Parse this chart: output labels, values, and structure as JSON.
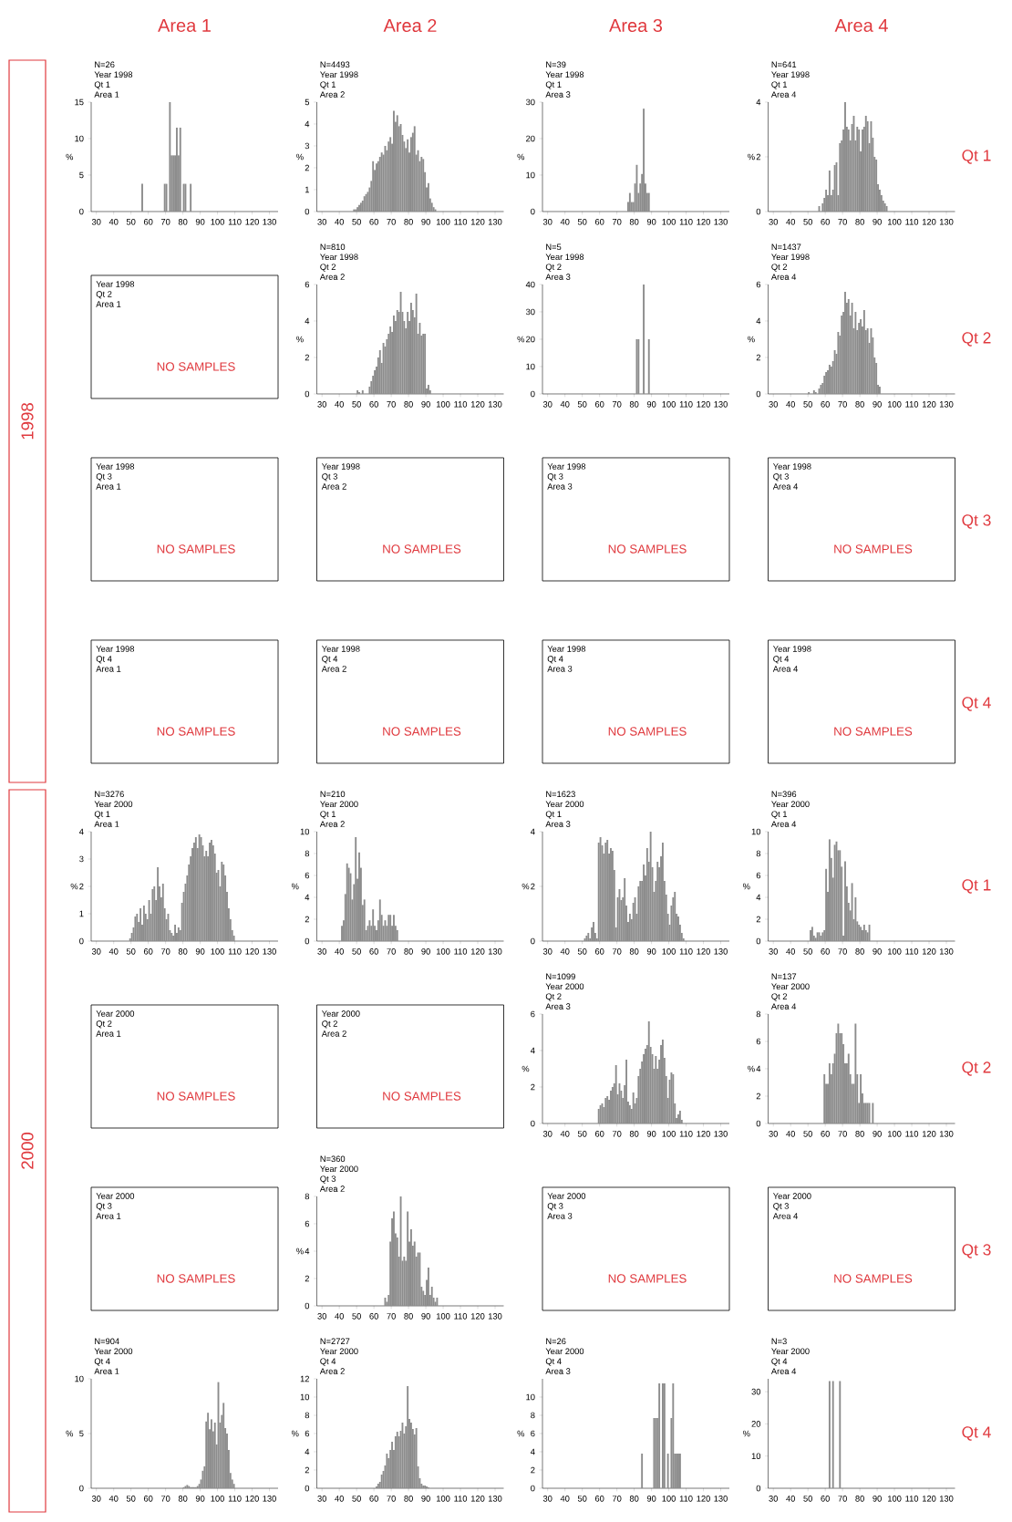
{
  "chart_data": [
    {
      "type": "other",
      "color": "#e0393e",
      "annotations": [
        "1998",
        "2000",
        "Area 1",
        "Area 2",
        "Area 3",
        "Area 4",
        "Qt 1",
        "Qt 2",
        "Qt 3",
        "Qt 4",
        "Qt 1",
        "Qt 2",
        "Qt 3",
        "Qt 4"
      ]
    },
    {
      "type": "histogram",
      "color": "#8c8c8c",
      "ylabel": "%",
      "annotations": [
        "N=26",
        "Year 1998",
        "Qt 1",
        "Area 1"
      ],
      "xlim": [
        27,
        135
      ],
      "xticks": [
        30,
        40,
        50,
        60,
        70,
        80,
        90,
        100,
        110,
        120,
        130
      ],
      "ylim": [
        0,
        15
      ],
      "yticks": [
        0,
        5,
        10,
        15
      ],
      "bins": [
        56,
        57,
        58,
        59,
        60,
        61,
        62,
        63,
        64,
        65,
        66,
        67,
        68,
        69,
        70,
        71,
        72,
        73,
        74,
        75,
        76,
        77,
        78,
        79,
        80,
        81,
        82,
        83,
        84,
        85
      ],
      "values": [
        3.8,
        0,
        0,
        0,
        0,
        0,
        0,
        0,
        0,
        0,
        0,
        0,
        0,
        3.8,
        3.8,
        0,
        15,
        7.7,
        7.7,
        7.7,
        11.5,
        7.7,
        11.5,
        0,
        3.8,
        3.8,
        0,
        0,
        3.8
      ]
    },
    {
      "type": "histogram",
      "color": "#8c8c8c",
      "ylabel": "%",
      "annotations": [
        "N=4493",
        "Year 1998",
        "Qt 1",
        "Area 2"
      ],
      "xlim": [
        27,
        135
      ],
      "xticks": [
        30,
        40,
        50,
        60,
        70,
        80,
        90,
        100,
        110,
        120,
        130
      ],
      "ylim": [
        0,
        5
      ],
      "yticks": [
        0,
        1,
        2,
        3,
        4,
        5
      ],
      "bins": [
        48,
        49,
        50,
        51,
        52,
        53,
        54,
        55,
        56,
        57,
        58,
        59,
        60,
        61,
        62,
        63,
        64,
        65,
        66,
        67,
        68,
        69,
        70,
        71,
        72,
        73,
        74,
        75,
        76,
        77,
        78,
        79,
        80,
        81,
        82,
        83,
        84,
        85,
        86,
        87,
        88,
        89,
        90,
        91,
        92,
        93,
        94,
        95,
        96
      ],
      "values": [
        0.1,
        0.1,
        0.2,
        0.3,
        0.4,
        0.5,
        0.7,
        0.8,
        0.9,
        1.1,
        1.4,
        2.3,
        1.9,
        2.2,
        2.3,
        2.5,
        2.7,
        2.6,
        3.0,
        2.8,
        3.2,
        3.4,
        3.1,
        4.6,
        4.1,
        4.4,
        3.9,
        4.0,
        3.5,
        3.2,
        2.9,
        3.3,
        2.7,
        3.4,
        3.6,
        3.9,
        2.6,
        2.8,
        2.3,
        2.5,
        2.4,
        1.8,
        1.1,
        1.3,
        0.6,
        0.4,
        0.2,
        0.1
      ]
    },
    {
      "type": "histogram",
      "color": "#8c8c8c",
      "ylabel": "%",
      "annotations": [
        "N=39",
        "Year 1998",
        "Qt 1",
        "Area 3"
      ],
      "xlim": [
        27,
        135
      ],
      "xticks": [
        30,
        40,
        50,
        60,
        70,
        80,
        90,
        100,
        110,
        120,
        130
      ],
      "ylim": [
        0,
        30
      ],
      "yticks": [
        0,
        10,
        20,
        30
      ],
      "bins": [
        76,
        77,
        78,
        79,
        80,
        81,
        82,
        83,
        84,
        85,
        86,
        87,
        88,
        89
      ],
      "values": [
        2.6,
        5.1,
        2.6,
        2.6,
        7.7,
        12.8,
        5.1,
        7.7,
        10.3,
        28.2,
        7.7,
        5.1,
        5.1
      ]
    },
    {
      "type": "histogram",
      "color": "#8c8c8c",
      "ylabel": "%",
      "annotations": [
        "N=641",
        "Year 1998",
        "Qt 1",
        "Area 4"
      ],
      "xlim": [
        27,
        135
      ],
      "xticks": [
        30,
        40,
        50,
        60,
        70,
        80,
        90,
        100,
        110,
        120,
        130
      ],
      "ylim": [
        0,
        4
      ],
      "yticks": [
        0,
        2,
        4
      ],
      "bins": [
        56,
        57,
        58,
        59,
        60,
        61,
        62,
        63,
        64,
        65,
        66,
        67,
        68,
        69,
        70,
        71,
        72,
        73,
        74,
        75,
        76,
        77,
        78,
        79,
        80,
        81,
        82,
        83,
        84,
        85,
        86,
        87,
        88,
        89,
        90,
        91,
        92,
        93,
        94,
        95,
        96
      ],
      "values": [
        0.2,
        0,
        0.3,
        0.5,
        0.8,
        0.6,
        1.5,
        0.6,
        0.8,
        1.7,
        1.8,
        0.6,
        2.5,
        2.6,
        3.0,
        4.0,
        3.1,
        3.0,
        2.6,
        3.2,
        3.5,
        2.6,
        3.1,
        3.0,
        2.2,
        3.0,
        3.1,
        3.5,
        3.3,
        2.5,
        3.3,
        2.7,
        2.0,
        1.9,
        1.0,
        0.8,
        0.6,
        0.4,
        0.3,
        0.2
      ]
    },
    {
      "type": "other",
      "color": "#e0393e",
      "annotations": [
        "Year 1998",
        "Qt 2",
        "Area 1",
        "NO SAMPLES"
      ]
    },
    {
      "type": "histogram",
      "color": "#8c8c8c",
      "ylabel": "%",
      "annotations": [
        "N=810",
        "Year 1998",
        "Qt 2",
        "Area 2"
      ],
      "xlim": [
        27,
        135
      ],
      "xticks": [
        30,
        40,
        50,
        60,
        70,
        80,
        90,
        100,
        110,
        120,
        130
      ],
      "ylim": [
        0,
        6
      ],
      "yticks": [
        0,
        2,
        4,
        6
      ],
      "bins": [
        50,
        51,
        52,
        53,
        54,
        55,
        56,
        57,
        58,
        59,
        60,
        61,
        62,
        63,
        64,
        65,
        66,
        67,
        68,
        69,
        70,
        71,
        72,
        73,
        74,
        75,
        76,
        77,
        78,
        79,
        80,
        81,
        82,
        83,
        84,
        85,
        86,
        87,
        88,
        89,
        90,
        91,
        92,
        93
      ],
      "values": [
        0.2,
        0.1,
        0,
        0.2,
        0,
        0,
        0,
        0.4,
        0.7,
        1.0,
        1.3,
        1.5,
        2.0,
        2.4,
        1.7,
        2.8,
        2.6,
        3.0,
        3.3,
        3.7,
        3.4,
        4.3,
        4.0,
        4.6,
        4.5,
        5.6,
        4.5,
        4.0,
        3.6,
        4.5,
        4.0,
        5.0,
        4.6,
        4.2,
        5.5,
        3.3,
        3.9,
        3.2,
        3.3,
        3.3,
        0.3,
        0.5,
        0.2
      ]
    },
    {
      "type": "histogram",
      "color": "#8c8c8c",
      "ylabel": "%",
      "annotations": [
        "N=5",
        "Year 1998",
        "Qt 2",
        "Area 3"
      ],
      "xlim": [
        27,
        135
      ],
      "xticks": [
        30,
        40,
        50,
        60,
        70,
        80,
        90,
        100,
        110,
        120,
        130
      ],
      "ylim": [
        0,
        40
      ],
      "yticks": [
        0,
        10,
        20,
        30,
        40
      ],
      "bins": [
        81,
        82,
        83,
        84,
        85,
        86,
        87,
        88,
        89
      ],
      "values": [
        20,
        20,
        0,
        0,
        40,
        0,
        0,
        20
      ]
    },
    {
      "type": "histogram",
      "color": "#8c8c8c",
      "ylabel": "%",
      "annotations": [
        "N=1437",
        "Year 1998",
        "Qt 2",
        "Area 4"
      ],
      "xlim": [
        27,
        135
      ],
      "xticks": [
        30,
        40,
        50,
        60,
        70,
        80,
        90,
        100,
        110,
        120,
        130
      ],
      "ylim": [
        0,
        6
      ],
      "yticks": [
        0,
        2,
        4,
        6
      ],
      "bins": [
        50,
        51,
        52,
        53,
        54,
        55,
        56,
        57,
        58,
        59,
        60,
        61,
        62,
        63,
        64,
        65,
        66,
        67,
        68,
        69,
        70,
        71,
        72,
        73,
        74,
        75,
        76,
        77,
        78,
        79,
        80,
        81,
        82,
        83,
        84,
        85,
        86,
        87,
        88,
        89,
        90,
        91,
        92
      ],
      "values": [
        0.1,
        0,
        0,
        0.2,
        0.1,
        0,
        0.3,
        0.5,
        0.6,
        1.0,
        1.2,
        1.3,
        1.6,
        1.5,
        1.8,
        2.4,
        2.2,
        3.4,
        3.2,
        4.3,
        4.5,
        5.6,
        5.0,
        5.2,
        4.3,
        5.0,
        3.6,
        4.5,
        3.5,
        3.9,
        4.1,
        3.7,
        4.6,
        3.5,
        3.6,
        2.8,
        3.6,
        3.1,
        2.0,
        1.7,
        0.5,
        0.4
      ]
    },
    {
      "type": "other",
      "color": "#e0393e",
      "annotations": [
        "Year 1998",
        "Qt 3",
        "Area 1",
        "NO SAMPLES"
      ]
    },
    {
      "type": "other",
      "color": "#e0393e",
      "annotations": [
        "Year 1998",
        "Qt 3",
        "Area 2",
        "NO SAMPLES"
      ]
    },
    {
      "type": "other",
      "color": "#e0393e",
      "annotations": [
        "Year 1998",
        "Qt 3",
        "Area 3",
        "NO SAMPLES"
      ]
    },
    {
      "type": "other",
      "color": "#e0393e",
      "annotations": [
        "Year 1998",
        "Qt 3",
        "Area 4",
        "NO SAMPLES"
      ]
    },
    {
      "type": "other",
      "color": "#e0393e",
      "annotations": [
        "Year 1998",
        "Qt 4",
        "Area 1",
        "NO SAMPLES"
      ]
    },
    {
      "type": "other",
      "color": "#e0393e",
      "annotations": [
        "Year 1998",
        "Qt 4",
        "Area 2",
        "NO SAMPLES"
      ]
    },
    {
      "type": "other",
      "color": "#e0393e",
      "annotations": [
        "Year 1998",
        "Qt 4",
        "Area 3",
        "NO SAMPLES"
      ]
    },
    {
      "type": "other",
      "color": "#e0393e",
      "annotations": [
        "Year 1998",
        "Qt 4",
        "Area 4",
        "NO SAMPLES"
      ]
    },
    {
      "type": "histogram",
      "color": "#8c8c8c",
      "ylabel": "%",
      "annotations": [
        "N=3276",
        "Year 2000",
        "Qt 1",
        "Area 1"
      ],
      "xlim": [
        27,
        135
      ],
      "xticks": [
        30,
        40,
        50,
        60,
        70,
        80,
        90,
        100,
        110,
        120,
        130
      ],
      "ylim": [
        0,
        4
      ],
      "yticks": [
        0,
        1,
        2,
        3,
        4
      ],
      "bins": [
        49,
        50,
        51,
        52,
        53,
        54,
        55,
        56,
        57,
        58,
        59,
        60,
        61,
        62,
        63,
        64,
        65,
        66,
        67,
        68,
        69,
        70,
        71,
        72,
        73,
        74,
        75,
        76,
        77,
        78,
        79,
        80,
        81,
        82,
        83,
        84,
        85,
        86,
        87,
        88,
        89,
        90,
        91,
        92,
        93,
        94,
        95,
        96,
        97,
        98,
        99,
        100,
        101,
        102,
        103,
        104,
        105,
        106,
        107,
        108,
        109,
        110
      ],
      "values": [
        0.1,
        0.3,
        0.5,
        0.9,
        1.0,
        0.7,
        1.2,
        0.6,
        1.3,
        1.0,
        0.8,
        1.5,
        1.0,
        1.9,
        2.0,
        1.5,
        2.7,
        2.0,
        1.6,
        2.1,
        1.2,
        0.8,
        1.0,
        0.4,
        0.3,
        0.2,
        0.6,
        0.3,
        0.5,
        0.4,
        1.4,
        1.8,
        2.1,
        2.4,
        2.8,
        3.1,
        3.4,
        3.6,
        3.8,
        3.4,
        3.9,
        3.8,
        3.5,
        3.1,
        3.3,
        3.1,
        3.6,
        3.7,
        3.5,
        3.2,
        2.5,
        2.6,
        2.0,
        2.9,
        2.8,
        2.4,
        1.8,
        1.2,
        0.8,
        0.4,
        0.2
      ]
    },
    {
      "type": "histogram",
      "color": "#8c8c8c",
      "ylabel": "%",
      "annotations": [
        "N=210",
        "Year 2000",
        "Qt 1",
        "Area 2"
      ],
      "xlim": [
        27,
        135
      ],
      "xticks": [
        30,
        40,
        50,
        60,
        70,
        80,
        90,
        100,
        110,
        120,
        130
      ],
      "ylim": [
        0,
        10
      ],
      "yticks": [
        0,
        2,
        4,
        6,
        8,
        10
      ],
      "bins": [
        41,
        42,
        43,
        44,
        45,
        46,
        47,
        48,
        49,
        50,
        51,
        52,
        53,
        54,
        55,
        56,
        57,
        58,
        59,
        60,
        61,
        62,
        63,
        64,
        65,
        66,
        67,
        68,
        69,
        70,
        71,
        72,
        73,
        74
      ],
      "values": [
        1.4,
        1.9,
        4.3,
        7.1,
        6.7,
        6.2,
        3.8,
        5.2,
        9.5,
        5.7,
        8.1,
        6.7,
        3.3,
        3.8,
        1.0,
        1.4,
        1.9,
        1.4,
        2.9,
        1.4,
        1.0,
        1.9,
        3.8,
        2.4,
        1.4,
        1.9,
        1.4,
        2.4,
        2.4,
        1.4,
        2.4,
        1.4,
        1.0
      ]
    },
    {
      "type": "histogram",
      "color": "#8c8c8c",
      "ylabel": "%",
      "annotations": [
        "N=1623",
        "Year 2000",
        "Qt 1",
        "Area 3"
      ],
      "xlim": [
        27,
        135
      ],
      "xticks": [
        30,
        40,
        50,
        60,
        70,
        80,
        90,
        100,
        110,
        120,
        130
      ],
      "ylim": [
        0,
        4
      ],
      "yticks": [
        0,
        2,
        4
      ],
      "bins": [
        51,
        52,
        53,
        54,
        55,
        56,
        57,
        58,
        59,
        60,
        61,
        62,
        63,
        64,
        65,
        66,
        67,
        68,
        69,
        70,
        71,
        72,
        73,
        74,
        75,
        76,
        77,
        78,
        79,
        80,
        81,
        82,
        83,
        84,
        85,
        86,
        87,
        88,
        89,
        90,
        91,
        92,
        93,
        94,
        95,
        96,
        97,
        98,
        99,
        100,
        101,
        102,
        103,
        104,
        105,
        106,
        107,
        108,
        109
      ],
      "values": [
        0.1,
        0.2,
        0.3,
        0.1,
        0.5,
        0.7,
        0.3,
        0.1,
        3.6,
        3.8,
        3.5,
        3.2,
        3.6,
        3.7,
        3.2,
        3.4,
        3.3,
        2.6,
        0.5,
        1.6,
        1.9,
        1.5,
        1.6,
        2.3,
        1.3,
        0.7,
        1.0,
        0.8,
        1.4,
        1.6,
        1.0,
        2.0,
        2.2,
        2.2,
        2.8,
        2.4,
        3.4,
        2.9,
        4.0,
        2.7,
        1.8,
        2.2,
        2.9,
        2.7,
        3.1,
        3.6,
        2.2,
        1.7,
        1.0,
        0.6,
        1.3,
        1.6,
        1.8,
        1.0,
        0.9,
        0.6,
        0.3,
        0.1
      ]
    },
    {
      "type": "histogram",
      "color": "#8c8c8c",
      "ylabel": "%",
      "annotations": [
        "N=396",
        "Year 2000",
        "Qt 1",
        "Area 4"
      ],
      "xlim": [
        27,
        135
      ],
      "xticks": [
        30,
        40,
        50,
        60,
        70,
        80,
        90,
        100,
        110,
        120,
        130
      ],
      "ylim": [
        0,
        10
      ],
      "yticks": [
        0,
        2,
        4,
        6,
        8,
        10
      ],
      "bins": [
        51,
        52,
        53,
        54,
        55,
        56,
        57,
        58,
        59,
        60,
        61,
        62,
        63,
        64,
        65,
        66,
        67,
        68,
        69,
        70,
        71,
        72,
        73,
        74,
        75,
        76,
        77,
        78,
        79,
        80,
        81,
        82,
        83,
        84,
        85,
        86
      ],
      "values": [
        1.0,
        1.3,
        0.5,
        0.3,
        0.8,
        0.8,
        0.5,
        0.8,
        1.0,
        6.6,
        4.5,
        9.3,
        7.6,
        5.8,
        8.8,
        9.1,
        8.3,
        8.3,
        6.8,
        0.5,
        7.3,
        5.0,
        3.5,
        2.8,
        5.3,
        2.0,
        4.0,
        1.8,
        1.5,
        1.3,
        1.0,
        1.5,
        1.0,
        0.8,
        1.5
      ]
    },
    {
      "type": "other",
      "color": "#e0393e",
      "annotations": [
        "Year 2000",
        "Qt 2",
        "Area 1",
        "NO SAMPLES"
      ]
    },
    {
      "type": "other",
      "color": "#e0393e",
      "annotations": [
        "Year 2000",
        "Qt 2",
        "Area 2",
        "NO SAMPLES"
      ]
    },
    {
      "type": "histogram",
      "color": "#8c8c8c",
      "ylabel": "%",
      "annotations": [
        "N=1099",
        "Year 2000",
        "Qt 2",
        "Area 3"
      ],
      "xlim": [
        27,
        135
      ],
      "xticks": [
        30,
        40,
        50,
        60,
        70,
        80,
        90,
        100,
        110,
        120,
        130
      ],
      "ylim": [
        0,
        6
      ],
      "yticks": [
        0,
        2,
        4,
        6
      ],
      "bins": [
        59,
        60,
        61,
        62,
        63,
        64,
        65,
        66,
        67,
        68,
        69,
        70,
        71,
        72,
        73,
        74,
        75,
        76,
        77,
        78,
        79,
        80,
        81,
        82,
        83,
        84,
        85,
        86,
        87,
        88,
        89,
        90,
        91,
        92,
        93,
        94,
        95,
        96,
        97,
        98,
        99,
        100,
        101,
        102,
        103,
        104,
        105,
        106,
        107,
        108
      ],
      "values": [
        0.8,
        1.0,
        1.1,
        0.9,
        1.4,
        1.5,
        1.3,
        1.8,
        2.0,
        2.2,
        3.2,
        1.6,
        2.2,
        1.8,
        1.4,
        2.1,
        3.5,
        1.2,
        1.0,
        0.8,
        1.7,
        1.1,
        1.4,
        2.6,
        3.0,
        3.4,
        3.8,
        4.1,
        4.3,
        5.6,
        4.2,
        3.8,
        3.0,
        3.7,
        3.0,
        3.5,
        4.3,
        4.6,
        3.6,
        2.6,
        1.4,
        2.4,
        2.8,
        2.7,
        1.1,
        0.3,
        0.5,
        0.7,
        0.2
      ]
    },
    {
      "type": "histogram",
      "color": "#8c8c8c",
      "ylabel": "%",
      "annotations": [
        "N=137",
        "Year 2000",
        "Qt 2",
        "Area 4"
      ],
      "xlim": [
        27,
        135
      ],
      "xticks": [
        30,
        40,
        50,
        60,
        70,
        80,
        90,
        100,
        110,
        120,
        130
      ],
      "ylim": [
        0,
        8
      ],
      "yticks": [
        0,
        2,
        4,
        6,
        8
      ],
      "bins": [
        59,
        60,
        61,
        62,
        63,
        64,
        65,
        66,
        67,
        68,
        69,
        70,
        71,
        72,
        73,
        74,
        75,
        76,
        77,
        78,
        79,
        80,
        81,
        82,
        83,
        84,
        85,
        86,
        87,
        88
      ],
      "values": [
        3.6,
        2.9,
        2.9,
        4.4,
        3.6,
        4.4,
        5.1,
        6.6,
        7.3,
        6.6,
        6.6,
        5.8,
        4.4,
        4.4,
        5.1,
        3.6,
        2.9,
        2.9,
        7.3,
        3.6,
        1.5,
        3.6,
        2.2,
        1.5,
        1.5,
        1.5,
        1.5,
        0,
        1.5
      ]
    },
    {
      "type": "other",
      "color": "#e0393e",
      "annotations": [
        "Year 2000",
        "Qt 3",
        "Area 1",
        "NO SAMPLES"
      ]
    },
    {
      "type": "histogram",
      "color": "#8c8c8c",
      "ylabel": "%",
      "annotations": [
        "N=360",
        "Year 2000",
        "Qt 3",
        "Area 2"
      ],
      "xlim": [
        27,
        135
      ],
      "xticks": [
        30,
        40,
        50,
        60,
        70,
        80,
        90,
        100,
        110,
        120,
        130
      ],
      "ylim": [
        0,
        8
      ],
      "yticks": [
        0,
        2,
        4,
        6,
        8
      ],
      "bins": [
        66,
        67,
        68,
        69,
        70,
        71,
        72,
        73,
        74,
        75,
        76,
        77,
        78,
        79,
        80,
        81,
        82,
        83,
        84,
        85,
        86,
        87,
        88,
        89,
        90,
        91,
        92,
        93,
        94,
        95,
        96,
        97
      ],
      "values": [
        0.6,
        0.3,
        0.8,
        4.7,
        6.4,
        6.9,
        5.3,
        5.0,
        3.6,
        8.0,
        3.3,
        3.6,
        3.3,
        6.9,
        4.7,
        5.6,
        4.4,
        4.7,
        3.6,
        3.9,
        3.9,
        1.4,
        1.1,
        0.8,
        1.9,
        2.8,
        0.8,
        1.4,
        0.6,
        0.3,
        0.6
      ]
    },
    {
      "type": "other",
      "color": "#e0393e",
      "annotations": [
        "Year 2000",
        "Qt 3",
        "Area 3",
        "NO SAMPLES"
      ]
    },
    {
      "type": "other",
      "color": "#e0393e",
      "annotations": [
        "Year 2000",
        "Qt 3",
        "Area 4",
        "NO SAMPLES"
      ]
    },
    {
      "type": "histogram",
      "color": "#8c8c8c",
      "ylabel": "%",
      "annotations": [
        "N=904",
        "Year 2000",
        "Qt 4",
        "Area 1"
      ],
      "xlim": [
        27,
        135
      ],
      "xticks": [
        30,
        40,
        50,
        60,
        70,
        80,
        90,
        100,
        110,
        120,
        130
      ],
      "ylim": [
        0,
        10
      ],
      "yticks": [
        0,
        5,
        10
      ],
      "bins": [
        80,
        81,
        82,
        83,
        84,
        85,
        86,
        87,
        88,
        89,
        90,
        91,
        92,
        93,
        94,
        95,
        96,
        97,
        98,
        99,
        100,
        101,
        102,
        103,
        104,
        105,
        106,
        107,
        108,
        109,
        110
      ],
      "values": [
        0.1,
        0.2,
        0.3,
        0.2,
        0.1,
        0.1,
        0.1,
        0.1,
        0.2,
        0.4,
        0.8,
        1.6,
        2.0,
        6.1,
        6.9,
        5.4,
        6.3,
        5.2,
        6.0,
        4.0,
        9.7,
        6.0,
        6.7,
        7.8,
        5.5,
        5.0,
        3.5,
        1.4,
        0.8,
        0.4
      ]
    },
    {
      "type": "histogram",
      "color": "#8c8c8c",
      "ylabel": "%",
      "annotations": [
        "N=2727",
        "Year 2000",
        "Qt 4",
        "Area 2"
      ],
      "xlim": [
        27,
        135
      ],
      "xticks": [
        30,
        40,
        50,
        60,
        70,
        80,
        90,
        100,
        110,
        120,
        130
      ],
      "ylim": [
        0,
        12
      ],
      "yticks": [
        0,
        2,
        4,
        6,
        8,
        10,
        12
      ],
      "bins": [
        61,
        62,
        63,
        64,
        65,
        66,
        67,
        68,
        69,
        70,
        71,
        72,
        73,
        74,
        75,
        76,
        77,
        78,
        79,
        80,
        81,
        82,
        83,
        84,
        85,
        86,
        87,
        88,
        89,
        90,
        91,
        92
      ],
      "values": [
        0.2,
        0.5,
        0.7,
        1.5,
        1.9,
        2.5,
        3.8,
        3.3,
        4.2,
        5.1,
        4.2,
        5.7,
        6.2,
        5.7,
        6.3,
        7.2,
        6.0,
        6.8,
        11.2,
        7.6,
        7.2,
        6.5,
        5.9,
        6.6,
        2.4,
        1.1,
        0.5,
        0.3,
        0.3,
        0.2,
        0.1
      ]
    },
    {
      "type": "histogram",
      "color": "#8c8c8c",
      "ylabel": "%",
      "annotations": [
        "N=26",
        "Year 2000",
        "Qt 4",
        "Area 3"
      ],
      "xlim": [
        27,
        135
      ],
      "xticks": [
        30,
        40,
        50,
        60,
        70,
        80,
        90,
        100,
        110,
        120,
        130
      ],
      "ylim": [
        0,
        12
      ],
      "yticks": [
        0,
        2,
        4,
        6,
        8,
        10
      ],
      "bins": [
        84,
        85,
        86,
        87,
        88,
        89,
        90,
        91,
        92,
        93,
        94,
        95,
        96,
        97,
        98,
        99,
        100,
        101,
        102,
        103,
        104,
        105,
        106,
        107
      ],
      "values": [
        3.8,
        0,
        0,
        0,
        0,
        0,
        0,
        7.7,
        7.7,
        7.7,
        11.5,
        0,
        11.5,
        11.5,
        0,
        3.8,
        0,
        7.7,
        11.5,
        3.8,
        3.8,
        3.8,
        3.8
      ]
    },
    {
      "type": "histogram",
      "color": "#8c8c8c",
      "ylabel": "%",
      "annotations": [
        "N=3",
        "Year 2000",
        "Qt 4",
        "Area 4"
      ],
      "xlim": [
        27,
        135
      ],
      "xticks": [
        30,
        40,
        50,
        60,
        70,
        80,
        90,
        100,
        110,
        120,
        130
      ],
      "ylim": [
        0,
        34
      ],
      "yticks": [
        0,
        10,
        20,
        30
      ],
      "bins": [
        62,
        63,
        64,
        65,
        66,
        67,
        68,
        69
      ],
      "values": [
        33.3,
        0,
        33.3,
        0,
        0,
        0,
        33.3
      ]
    }
  ]
}
